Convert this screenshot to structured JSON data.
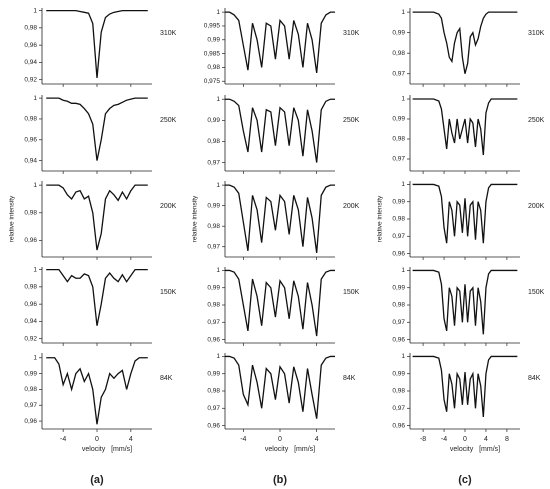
{
  "chart_data": [
    {
      "type": "line",
      "title": "310K",
      "x": [
        -6,
        -5.5,
        -5,
        -4.5,
        -4,
        -3.5,
        -3,
        -2.5,
        -2,
        -1.5,
        -1,
        -0.5,
        0,
        0.5,
        1,
        1.5,
        2,
        2.5,
        3,
        3.5,
        4,
        4.5,
        5,
        5.5,
        6
      ],
      "values": [
        1,
        1,
        1,
        1,
        1,
        1,
        1,
        1,
        0.999,
        0.998,
        0.997,
        0.985,
        0.922,
        0.975,
        0.992,
        0.996,
        0.998,
        0.999,
        1,
        1,
        1,
        1,
        1,
        1,
        1
      ],
      "xlim": [
        -6.5,
        6.5
      ],
      "xticks": [
        -4,
        0,
        4
      ],
      "ylim": [
        0.915,
        1.003
      ],
      "yticks": [
        1,
        {
          "value": 0.98,
          "label": "0,98"
        },
        {
          "value": 0.96,
          "label": "0,96"
        },
        {
          "value": 0.94,
          "label": "0,94"
        },
        {
          "value": 0.92,
          "label": "0,92"
        }
      ]
    },
    {
      "type": "line",
      "title": "250K",
      "x": [
        -6,
        -5.5,
        -5,
        -4.5,
        -4,
        -3.5,
        -3,
        -2.5,
        -2,
        -1.5,
        -1,
        -0.5,
        0,
        0.5,
        1,
        1.5,
        2,
        2.5,
        3,
        3.5,
        4,
        4.5,
        5,
        5.5,
        6
      ],
      "values": [
        1,
        1,
        1,
        1,
        0.998,
        0.997,
        0.995,
        0.995,
        0.994,
        0.99,
        0.985,
        0.975,
        0.94,
        0.96,
        0.985,
        0.99,
        0.993,
        0.994,
        0.996,
        0.998,
        0.999,
        1,
        1,
        1,
        1
      ],
      "xlim": [
        -6.5,
        6.5
      ],
      "xticks": [
        -4,
        0,
        4
      ],
      "ylim": [
        0.93,
        1.003
      ],
      "yticks": [
        1,
        {
          "value": 0.98,
          "label": "0,98"
        },
        {
          "value": 0.96,
          "label": "0,96"
        },
        {
          "value": 0.94,
          "label": "0,94"
        }
      ]
    },
    {
      "type": "line",
      "title": "200K",
      "ylabel": "relative intensity",
      "x": [
        -6,
        -5.5,
        -5,
        -4.5,
        -4,
        -3.5,
        -3,
        -2.5,
        -2,
        -1.5,
        -1,
        -0.5,
        0,
        0.5,
        1,
        1.5,
        2,
        2.5,
        3,
        3.5,
        4,
        4.5,
        5,
        5.5,
        6
      ],
      "values": [
        1,
        1,
        1,
        1,
        0.998,
        0.993,
        0.99,
        0.995,
        0.996,
        0.99,
        0.992,
        0.98,
        0.953,
        0.965,
        0.99,
        0.996,
        0.993,
        0.989,
        0.995,
        0.99,
        0.996,
        1,
        1,
        1,
        1
      ],
      "xlim": [
        -6.5,
        6.5
      ],
      "xticks": [
        -4,
        0,
        4
      ],
      "ylim": [
        0.948,
        1.003
      ],
      "yticks": [
        1,
        {
          "value": 0.98,
          "label": "0,98"
        },
        {
          "value": 0.96,
          "label": "0,96"
        }
      ]
    },
    {
      "type": "line",
      "title": "150K",
      "x": [
        -6,
        -5.5,
        -5,
        -4.5,
        -4,
        -3.5,
        -3,
        -2.5,
        -2,
        -1.5,
        -1,
        -0.5,
        0,
        0.5,
        1,
        1.5,
        2,
        2.5,
        3,
        3.5,
        4,
        4.5,
        5,
        5.5,
        6
      ],
      "values": [
        1,
        1,
        1,
        1,
        0.993,
        0.986,
        0.993,
        0.99,
        0.99,
        0.995,
        0.993,
        0.98,
        0.935,
        0.96,
        0.99,
        0.996,
        0.99,
        0.986,
        0.994,
        0.986,
        0.993,
        1,
        1,
        1,
        1
      ],
      "xlim": [
        -6.5,
        6.5
      ],
      "xticks": [
        -4,
        0,
        4
      ],
      "ylim": [
        0.915,
        1.003
      ],
      "yticks": [
        1,
        {
          "value": 0.98,
          "label": "0,98"
        },
        {
          "value": 0.96,
          "label": "0,96"
        },
        {
          "value": 0.94,
          "label": "0,94"
        },
        {
          "value": 0.92,
          "label": "0,92"
        }
      ]
    },
    {
      "type": "line",
      "title": "84K",
      "xlabel": "velocity   [mm/s]",
      "x": [
        -6,
        -5.5,
        -5,
        -4.5,
        -4,
        -3.5,
        -3,
        -2.5,
        -2,
        -1.5,
        -1,
        -0.5,
        0,
        0.5,
        1,
        1.5,
        2,
        2.5,
        3,
        3.5,
        4,
        4.5,
        5,
        5.5,
        6
      ],
      "values": [
        1,
        1,
        1,
        0.996,
        0.983,
        0.99,
        0.98,
        0.99,
        0.993,
        0.985,
        0.99,
        0.98,
        0.958,
        0.975,
        0.98,
        0.99,
        0.987,
        0.99,
        0.992,
        0.98,
        0.99,
        0.998,
        1,
        1,
        1
      ],
      "xlim": [
        -6.5,
        6.5
      ],
      "xticks": [
        -4,
        0,
        4
      ],
      "ylim": [
        0.955,
        1.003
      ],
      "yticks": [
        1,
        {
          "value": 0.99,
          "label": "0,99"
        },
        {
          "value": 0.98,
          "label": "0,98"
        },
        {
          "value": 0.97,
          "label": "0,97"
        },
        {
          "value": 0.96,
          "label": "0,96"
        }
      ]
    },
    {
      "type": "line",
      "title": "310K",
      "x": [
        -6,
        -5.5,
        -5,
        -4.5,
        -4,
        -3.5,
        -3,
        -2.5,
        -2,
        -1.5,
        -1,
        -0.5,
        0,
        0.5,
        1,
        1.5,
        2,
        2.5,
        3,
        3.5,
        4,
        4.5,
        5,
        5.5,
        6
      ],
      "values": [
        1,
        1,
        0.999,
        0.997,
        0.988,
        0.979,
        0.996,
        0.99,
        0.98,
        0.996,
        0.995,
        0.983,
        0.997,
        0.995,
        0.983,
        0.997,
        0.992,
        0.98,
        0.996,
        0.99,
        0.978,
        0.996,
        0.999,
        1,
        1
      ],
      "xlim": [
        -6,
        6
      ],
      "xticks": [
        -4,
        0,
        4
      ],
      "ylim": [
        0.974,
        1.0015
      ],
      "yticks": [
        1,
        {
          "value": 0.995,
          "label": "0,995"
        },
        {
          "value": 0.99,
          "label": "0,99"
        },
        {
          "value": 0.985,
          "label": "0,985"
        },
        {
          "value": 0.98,
          "label": "0,98"
        },
        {
          "value": 0.975,
          "label": "0,975"
        }
      ]
    },
    {
      "type": "line",
      "title": "250K",
      "x": [
        -6,
        -5.5,
        -5,
        -4.5,
        -4,
        -3.5,
        -3,
        -2.5,
        -2,
        -1.5,
        -1,
        -0.5,
        0,
        0.5,
        1,
        1.5,
        2,
        2.5,
        3,
        3.5,
        4,
        4.5,
        5,
        5.5,
        6
      ],
      "values": [
        1,
        1,
        0.999,
        0.997,
        0.985,
        0.975,
        0.996,
        0.99,
        0.975,
        0.995,
        0.994,
        0.978,
        0.996,
        0.994,
        0.978,
        0.996,
        0.99,
        0.973,
        0.995,
        0.985,
        0.97,
        0.995,
        0.999,
        1,
        1
      ],
      "xlim": [
        -6,
        6
      ],
      "xticks": [
        -4,
        0,
        4
      ],
      "ylim": [
        0.966,
        1.002
      ],
      "yticks": [
        1,
        {
          "value": 0.99,
          "label": "0,99"
        },
        {
          "value": 0.98,
          "label": "0,98"
        },
        {
          "value": 0.97,
          "label": "0,97"
        }
      ]
    },
    {
      "type": "line",
      "title": "200K",
      "ylabel": "relative intensity",
      "x": [
        -6,
        -5.5,
        -5,
        -4.5,
        -4,
        -3.5,
        -3,
        -2.5,
        -2,
        -1.5,
        -1,
        -0.5,
        0,
        0.5,
        1,
        1.5,
        2,
        2.5,
        3,
        3.5,
        4,
        4.5,
        5,
        5.5,
        6
      ],
      "values": [
        1,
        1,
        0.999,
        0.996,
        0.982,
        0.968,
        0.995,
        0.988,
        0.972,
        0.994,
        0.992,
        0.978,
        0.995,
        0.992,
        0.976,
        0.995,
        0.988,
        0.97,
        0.994,
        0.984,
        0.967,
        0.995,
        0.999,
        1,
        1
      ],
      "xlim": [
        -6,
        6
      ],
      "xticks": [
        -4,
        0,
        4
      ],
      "ylim": [
        0.965,
        1.002
      ],
      "yticks": [
        1,
        {
          "value": 0.99,
          "label": "0,99"
        },
        {
          "value": 0.98,
          "label": "0,98"
        },
        {
          "value": 0.97,
          "label": "0,97"
        }
      ]
    },
    {
      "type": "line",
      "title": "150K",
      "x": [
        -6,
        -5.5,
        -5,
        -4.5,
        -4,
        -3.5,
        -3,
        -2.5,
        -2,
        -1.5,
        -1,
        -0.5,
        0,
        0.5,
        1,
        1.5,
        2,
        2.5,
        3,
        3.5,
        4,
        4.5,
        5,
        5.5,
        6
      ],
      "values": [
        1,
        1,
        0.999,
        0.995,
        0.98,
        0.965,
        0.995,
        0.985,
        0.968,
        0.993,
        0.99,
        0.973,
        0.994,
        0.99,
        0.972,
        0.994,
        0.985,
        0.966,
        0.993,
        0.98,
        0.962,
        0.995,
        0.999,
        1,
        1
      ],
      "xlim": [
        -6,
        6
      ],
      "xticks": [
        -4,
        0,
        4
      ],
      "ylim": [
        0.958,
        1.002
      ],
      "yticks": [
        1,
        {
          "value": 0.99,
          "label": "0,99"
        },
        {
          "value": 0.98,
          "label": "0,98"
        },
        {
          "value": 0.97,
          "label": "0,97"
        },
        {
          "value": 0.96,
          "label": "0,96"
        }
      ]
    },
    {
      "type": "line",
      "title": "84K",
      "xlabel": "velocity   [mm/s]",
      "x": [
        -6,
        -5.5,
        -5,
        -4.5,
        -4,
        -3.5,
        -3,
        -2.5,
        -2,
        -1.5,
        -1,
        -0.5,
        0,
        0.5,
        1,
        1.5,
        2,
        2.5,
        3,
        3.5,
        4,
        4.5,
        5,
        5.5,
        6
      ],
      "values": [
        1,
        1,
        0.999,
        0.995,
        0.978,
        0.972,
        0.995,
        0.985,
        0.97,
        0.993,
        0.99,
        0.975,
        0.994,
        0.99,
        0.973,
        0.994,
        0.985,
        0.968,
        0.993,
        0.978,
        0.964,
        0.995,
        0.999,
        1,
        1
      ],
      "xlim": [
        -6,
        6
      ],
      "xticks": [
        -4,
        0,
        4
      ],
      "ylim": [
        0.958,
        1.002
      ],
      "yticks": [
        1,
        {
          "value": 0.99,
          "label": "0,99"
        },
        {
          "value": 0.98,
          "label": "0,98"
        },
        {
          "value": 0.97,
          "label": "0,97"
        },
        {
          "value": 0.96,
          "label": "0,96"
        }
      ]
    },
    {
      "type": "line",
      "title": "310K",
      "x": [
        -10,
        -8,
        -6,
        -5,
        -4.5,
        -4,
        -3.5,
        -3,
        -2.5,
        -2,
        -1.5,
        -1,
        -0.5,
        0,
        0.5,
        1,
        1.5,
        2,
        2.5,
        3,
        3.5,
        4,
        4.5,
        5,
        6,
        8,
        10
      ],
      "values": [
        1,
        1,
        1,
        0.999,
        0.997,
        0.99,
        0.985,
        0.978,
        0.976,
        0.985,
        0.99,
        0.992,
        0.978,
        0.97,
        0.975,
        0.988,
        0.99,
        0.984,
        0.987,
        0.993,
        0.997,
        0.999,
        1,
        1,
        1,
        1,
        1
      ],
      "xlim": [
        -10.5,
        10.5
      ],
      "xticks": [
        -8,
        -4,
        0,
        4,
        8
      ],
      "ylim": [
        0.965,
        1.002
      ],
      "yticks": [
        1,
        {
          "value": 0.99,
          "label": "0,99"
        },
        {
          "value": 0.98,
          "label": "0,98"
        },
        {
          "value": 0.97,
          "label": "0,97"
        }
      ]
    },
    {
      "type": "line",
      "title": "250K",
      "x": [
        -10,
        -8,
        -6,
        -5,
        -4.5,
        -4,
        -3.5,
        -3,
        -2.5,
        -2,
        -1.5,
        -1,
        -0.5,
        0,
        0.5,
        1,
        1.5,
        2,
        2.5,
        3,
        3.5,
        4,
        4.5,
        5,
        6,
        8,
        10
      ],
      "values": [
        1,
        1,
        1,
        0.999,
        0.995,
        0.985,
        0.975,
        0.99,
        0.983,
        0.978,
        0.99,
        0.98,
        0.985,
        0.99,
        0.978,
        0.99,
        0.988,
        0.976,
        0.99,
        0.985,
        0.972,
        0.993,
        0.998,
        1,
        1,
        1,
        1
      ],
      "xlim": [
        -10.5,
        10.5
      ],
      "xticks": [
        -8,
        -4,
        0,
        4,
        8
      ],
      "ylim": [
        0.964,
        1.002
      ],
      "yticks": [
        1,
        {
          "value": 0.99,
          "label": "0,99"
        },
        {
          "value": 0.98,
          "label": "0,98"
        },
        {
          "value": 0.97,
          "label": "0,97"
        }
      ]
    },
    {
      "type": "line",
      "title": "200K",
      "ylabel": "relative intensity",
      "x": [
        -10,
        -8,
        -6,
        -5,
        -4.5,
        -4,
        -3.5,
        -3,
        -2.5,
        -2,
        -1.5,
        -1,
        -0.5,
        0,
        0.5,
        1,
        1.5,
        2,
        2.5,
        3,
        3.5,
        4,
        4.5,
        5,
        6,
        8,
        10
      ],
      "values": [
        1,
        1,
        1,
        0.999,
        0.993,
        0.975,
        0.966,
        0.99,
        0.985,
        0.97,
        0.99,
        0.988,
        0.972,
        0.992,
        0.97,
        0.988,
        0.99,
        0.968,
        0.99,
        0.985,
        0.966,
        0.99,
        0.998,
        1,
        1,
        1,
        1
      ],
      "xlim": [
        -10.5,
        10.5
      ],
      "xticks": [
        -8,
        -4,
        0,
        4,
        8
      ],
      "ylim": [
        0.958,
        1.002
      ],
      "yticks": [
        1,
        {
          "value": 0.99,
          "label": "0,99"
        },
        {
          "value": 0.98,
          "label": "0,98"
        },
        {
          "value": 0.97,
          "label": "0,97"
        },
        {
          "value": 0.96,
          "label": "0,96"
        }
      ]
    },
    {
      "type": "line",
      "title": "150K",
      "x": [
        -10,
        -8,
        -6,
        -5,
        -4.5,
        -4,
        -3.5,
        -3,
        -2.5,
        -2,
        -1.5,
        -1,
        -0.5,
        0,
        0.5,
        1,
        1.5,
        2,
        2.5,
        3,
        3.5,
        4,
        4.5,
        5,
        6,
        8,
        10
      ],
      "values": [
        1,
        1,
        1,
        0.999,
        0.992,
        0.972,
        0.965,
        0.99,
        0.985,
        0.968,
        0.99,
        0.988,
        0.97,
        0.992,
        0.97,
        0.988,
        0.99,
        0.968,
        0.99,
        0.982,
        0.963,
        0.99,
        0.998,
        1,
        1,
        1,
        1
      ],
      "xlim": [
        -10.5,
        10.5
      ],
      "xticks": [
        -8,
        -4,
        0,
        4,
        8
      ],
      "ylim": [
        0.958,
        1.002
      ],
      "yticks": [
        1,
        {
          "value": 0.99,
          "label": "0,99"
        },
        {
          "value": 0.98,
          "label": "0,98"
        },
        {
          "value": 0.97,
          "label": "0,97"
        },
        {
          "value": 0.96,
          "label": "0,96"
        }
      ]
    },
    {
      "type": "line",
      "title": "84K",
      "xlabel": "velocity   [mm/s]",
      "x": [
        -10,
        -8,
        -6,
        -5,
        -4.5,
        -4,
        -3.5,
        -3,
        -2.5,
        -2,
        -1.5,
        -1,
        -0.5,
        0,
        0.5,
        1,
        1.5,
        2,
        2.5,
        3,
        3.5,
        4,
        4.5,
        5,
        6,
        8,
        10
      ],
      "values": [
        1,
        1,
        1,
        0.999,
        0.992,
        0.975,
        0.968,
        0.99,
        0.984,
        0.97,
        0.99,
        0.987,
        0.972,
        0.991,
        0.972,
        0.987,
        0.99,
        0.97,
        0.99,
        0.983,
        0.965,
        0.99,
        0.998,
        1,
        1,
        1,
        1
      ],
      "xlim": [
        -10.5,
        10.5
      ],
      "xticks": [
        -8,
        -4,
        0,
        4,
        8
      ],
      "ylim": [
        0.958,
        1.002
      ],
      "yticks": [
        1,
        {
          "value": 0.99,
          "label": "0,99"
        },
        {
          "value": 0.98,
          "label": "0,98"
        },
        {
          "value": 0.97,
          "label": "0,97"
        },
        {
          "value": 0.96,
          "label": "0,96"
        }
      ]
    }
  ],
  "captions": [
    "(a)",
    "(b)",
    "(c)"
  ]
}
